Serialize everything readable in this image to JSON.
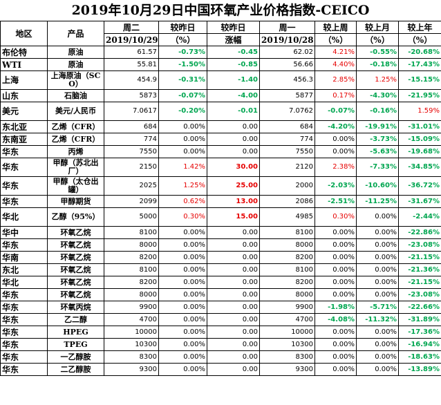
{
  "title": "2019年10月29日中国环氧产业价格指数-CEICO",
  "header_top": [
    "地区",
    "产品",
    "周二",
    "较昨日",
    "较昨日",
    "周一",
    "较上周",
    "较上月",
    "较上年"
  ],
  "header_bottom": [
    "2019/10/29",
    "（%）",
    "涨幅",
    "2019/10/28",
    "（%）",
    "（%）",
    "（%）"
  ],
  "rows": [
    {
      "region": "布伦特",
      "product": "原油",
      "today": "61.57",
      "pct_day": "-0.73%",
      "chg_day": "-0.45",
      "prev": "62.02",
      "pct_week": "4.21%",
      "pct_month": "-0.55%",
      "pct_year": "-20.68%",
      "tall": false
    },
    {
      "region": "WTI",
      "product": "原油",
      "today": "55.81",
      "pct_day": "-1.50%",
      "chg_day": "-0.85",
      "prev": "56.66",
      "pct_week": "4.40%",
      "pct_month": "-0.18%",
      "pct_year": "-17.43%",
      "tall": false
    },
    {
      "region": "上海",
      "product": "上海原油（SCO）",
      "today": "454.9",
      "pct_day": "-0.31%",
      "chg_day": "-1.40",
      "prev": "456.3",
      "pct_week": "2.85%",
      "pct_month": "1.25%",
      "pct_year": "-15.15%",
      "tall": true
    },
    {
      "region": "山东",
      "product": "石脑油",
      "today": "5873",
      "pct_day": "-0.07%",
      "chg_day": "-4.00",
      "prev": "5877",
      "pct_week": "0.17%",
      "pct_month": "-4.30%",
      "pct_year": "-21.95%",
      "tall": false
    },
    {
      "region": "美元",
      "product": "美元/人民币",
      "today": "7.0617",
      "pct_day": "-0.20%",
      "chg_day": "-0.01",
      "prev": "7.0762",
      "pct_week": "-0.07%",
      "pct_month": "-0.16%",
      "pct_year": "1.59%",
      "tall": true
    },
    {
      "region": "东北亚",
      "product": "乙烯（CFR）",
      "today": "684",
      "pct_day": "0.00%",
      "chg_day": "0.00",
      "prev": "684",
      "pct_week": "-4.20%",
      "pct_month": "-19.91%",
      "pct_year": "-31.01%",
      "tall": false
    },
    {
      "region": "东南亚",
      "product": "乙烯（CFR）",
      "today": "774",
      "pct_day": "0.00%",
      "chg_day": "0.00",
      "prev": "774",
      "pct_week": "0.00%",
      "pct_month": "-3.73%",
      "pct_year": "-15.09%",
      "tall": false
    },
    {
      "region": "华东",
      "product": "丙烯",
      "today": "7550",
      "pct_day": "0.00%",
      "chg_day": "0.00",
      "prev": "7550",
      "pct_week": "0.00%",
      "pct_month": "-5.63%",
      "pct_year": "-19.68%",
      "tall": false
    },
    {
      "region": "华东",
      "product": "甲醇（苏北出厂）",
      "today": "2150",
      "pct_day": "1.42%",
      "chg_day": "30.00",
      "prev": "2120",
      "pct_week": "2.38%",
      "pct_month": "-7.33%",
      "pct_year": "-34.85%",
      "tall": true
    },
    {
      "region": "华东",
      "product": "甲醇（太仓出罐）",
      "today": "2025",
      "pct_day": "1.25%",
      "chg_day": "25.00",
      "prev": "2000",
      "pct_week": "-2.03%",
      "pct_month": "-10.60%",
      "pct_year": "-36.72%",
      "tall": true
    },
    {
      "region": "华东",
      "product": "甲醇期货",
      "today": "2099",
      "pct_day": "0.62%",
      "chg_day": "13.00",
      "prev": "2086",
      "pct_week": "-2.51%",
      "pct_month": "-11.25%",
      "pct_year": "-31.67%",
      "tall": false
    },
    {
      "region": "华北",
      "product": "乙醇（95%）",
      "today": "5000",
      "pct_day": "0.30%",
      "chg_day": "15.00",
      "prev": "4985",
      "pct_week": "0.30%",
      "pct_month": "0.00%",
      "pct_year": "-2.44%",
      "tall": true
    },
    {
      "region": "华中",
      "product": "环氧乙烷",
      "today": "8100",
      "pct_day": "0.00%",
      "chg_day": "0.00",
      "prev": "8100",
      "pct_week": "0.00%",
      "pct_month": "0.00%",
      "pct_year": "-22.86%",
      "tall": false
    },
    {
      "region": "华东",
      "product": "环氧乙烷",
      "today": "8000",
      "pct_day": "0.00%",
      "chg_day": "0.00",
      "prev": "8000",
      "pct_week": "0.00%",
      "pct_month": "0.00%",
      "pct_year": "-23.08%",
      "tall": false
    },
    {
      "region": "华南",
      "product": "环氧乙烷",
      "today": "8200",
      "pct_day": "0.00%",
      "chg_day": "0.00",
      "prev": "8200",
      "pct_week": "0.00%",
      "pct_month": "0.00%",
      "pct_year": "-21.15%",
      "tall": false
    },
    {
      "region": "东北",
      "product": "环氧乙烷",
      "today": "8100",
      "pct_day": "0.00%",
      "chg_day": "0.00",
      "prev": "8100",
      "pct_week": "0.00%",
      "pct_month": "0.00%",
      "pct_year": "-21.36%",
      "tall": false
    },
    {
      "region": "华北",
      "product": "环氧乙烷",
      "today": "8200",
      "pct_day": "0.00%",
      "chg_day": "0.00",
      "prev": "8200",
      "pct_week": "0.00%",
      "pct_month": "0.00%",
      "pct_year": "-21.15%",
      "tall": false
    },
    {
      "region": "华东",
      "product": "环氧乙烷",
      "today": "8000",
      "pct_day": "0.00%",
      "chg_day": "0.00",
      "prev": "8000",
      "pct_week": "0.00%",
      "pct_month": "0.00%",
      "pct_year": "-23.08%",
      "tall": false
    },
    {
      "region": "华东",
      "product": "环氧丙烷",
      "today": "9900",
      "pct_day": "0.00%",
      "chg_day": "0.00",
      "prev": "9900",
      "pct_week": "-1.98%",
      "pct_month": "-5.71%",
      "pct_year": "-22.66%",
      "tall": false
    },
    {
      "region": "华东",
      "product": "乙二醇",
      "today": "4700",
      "pct_day": "0.00%",
      "chg_day": "0.00",
      "prev": "4700",
      "pct_week": "-4.08%",
      "pct_month": "-11.32%",
      "pct_year": "-31.89%",
      "tall": false
    },
    {
      "region": "华东",
      "product": "HPEG",
      "today": "10000",
      "pct_day": "0.00%",
      "chg_day": "0.00",
      "prev": "10000",
      "pct_week": "0.00%",
      "pct_month": "0.00%",
      "pct_year": "-17.36%",
      "tall": false
    },
    {
      "region": "华东",
      "product": "TPEG",
      "today": "10300",
      "pct_day": "0.00%",
      "chg_day": "0.00",
      "prev": "10300",
      "pct_week": "0.00%",
      "pct_month": "0.00%",
      "pct_year": "-16.94%",
      "tall": false
    },
    {
      "region": "华东",
      "product": "一乙醇胺",
      "today": "8300",
      "pct_day": "0.00%",
      "chg_day": "0.00",
      "prev": "8300",
      "pct_week": "0.00%",
      "pct_month": "0.00%",
      "pct_year": "-18.63%",
      "tall": false
    },
    {
      "region": "华东",
      "product": "二乙醇胺",
      "today": "9300",
      "pct_day": "0.00%",
      "chg_day": "0.00",
      "prev": "9300",
      "pct_week": "0.00%",
      "pct_month": "0.00%",
      "pct_year": "-13.89%",
      "tall": false
    }
  ],
  "colors": {
    "up": "#e60000",
    "down": "#00a650",
    "flat": "#000000"
  }
}
